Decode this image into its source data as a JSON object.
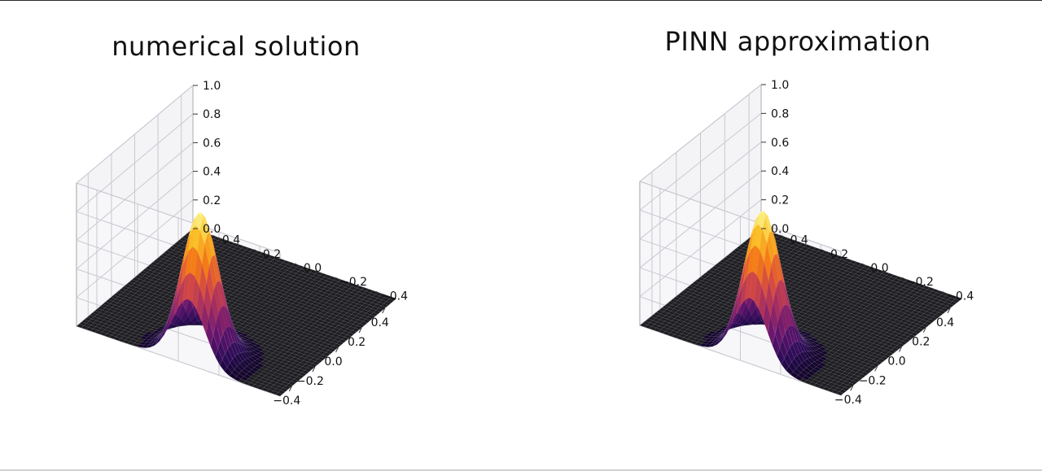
{
  "chart_data": [
    {
      "type": "surface",
      "title": "numerical solution",
      "xlabel": "",
      "ylabel": "",
      "zlabel": "",
      "x_ticks": [
        "−0.4",
        "−0.2",
        "0.0",
        "0.2",
        "0.4"
      ],
      "y_ticks": [
        "−0.4",
        "−0.2",
        "0.0",
        "0.2",
        "0.4"
      ],
      "z_ticks": [
        "0.0",
        "0.2",
        "0.4",
        "0.6",
        "0.8",
        "1.0"
      ],
      "xlim": [
        -0.5,
        0.5
      ],
      "ylim": [
        -0.5,
        0.5
      ],
      "zlim": [
        0,
        1
      ],
      "grid": true,
      "colormap": "inferno",
      "surface": {
        "function": "gaussian",
        "peak": 1.0,
        "center_x": -0.4,
        "center_y": -0.05,
        "sigma": 0.08
      }
    },
    {
      "type": "surface",
      "title": "PINN approximation",
      "xlabel": "",
      "ylabel": "",
      "zlabel": "",
      "x_ticks": [
        "−0.4",
        "−0.2",
        "0.0",
        "0.2",
        "0.4"
      ],
      "y_ticks": [
        "−0.4",
        "−0.2",
        "0.0",
        "0.2",
        "0.4"
      ],
      "z_ticks": [
        "0.0",
        "0.2",
        "0.4",
        "0.6",
        "0.8",
        "1.0"
      ],
      "xlim": [
        -0.5,
        0.5
      ],
      "ylim": [
        -0.5,
        0.5
      ],
      "zlim": [
        0,
        1
      ],
      "grid": true,
      "colormap": "inferno",
      "surface": {
        "function": "gaussian",
        "peak": 1.0,
        "center_x": -0.4,
        "center_y": -0.05,
        "sigma": 0.08
      }
    }
  ],
  "colors": {
    "grid": "#c8c8d0",
    "pane_edge": "#9a9aa0",
    "floor": "#1b1b1f",
    "text": "#111111"
  }
}
